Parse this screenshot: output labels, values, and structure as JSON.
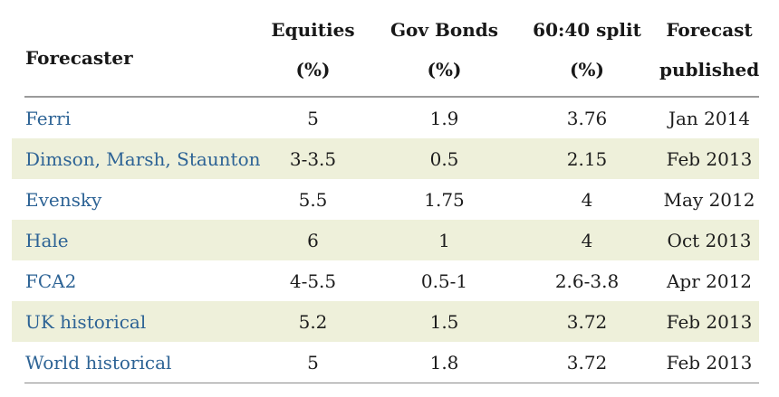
{
  "header": {
    "forecaster": "Forecaster",
    "equities_line1": "Equities",
    "equities_line2": "(%)",
    "gov_bonds_line1": "Gov Bonds",
    "gov_bonds_line2": "(%)",
    "split_line1": "60:40 split",
    "split_line2": "(%)",
    "published_line1": "Forecast",
    "published_line2": "published"
  },
  "rows": [
    {
      "forecaster": "Ferri",
      "equities": "5",
      "gov_bonds": "1.9",
      "split": "3.76",
      "published": "Jan 2014"
    },
    {
      "forecaster": "Dimson, Marsh, Staunton",
      "equities": "3-3.5",
      "gov_bonds": "0.5",
      "split": "2.15",
      "published": "Feb 2013"
    },
    {
      "forecaster": "Evensky",
      "equities": "5.5",
      "gov_bonds": "1.75",
      "split": "4",
      "published": "May 2012"
    },
    {
      "forecaster": "Hale",
      "equities": "6",
      "gov_bonds": "1",
      "split": "4",
      "published": "Oct 2013"
    },
    {
      "forecaster": "FCA2",
      "equities": "4-5.5",
      "gov_bonds": "0.5-1",
      "split": "2.6-3.8",
      "published": "Apr 2012"
    },
    {
      "forecaster": "UK historical",
      "equities": "5.2",
      "gov_bonds": "1.5",
      "split": "3.72",
      "published": "Feb 2013"
    },
    {
      "forecaster": "World historical",
      "equities": "5",
      "gov_bonds": "1.8",
      "split": "3.72",
      "published": "Feb 2013"
    }
  ],
  "colors": {
    "link_blue": "#2d6395",
    "body_text": "#1c1c1c",
    "header_text": "#181818",
    "row_shade": "#eef0da",
    "top_rule": "#9a9a9a",
    "bottom_rule": "#8a8a8a"
  },
  "chart_data": {
    "type": "table",
    "title": "",
    "columns": [
      "Forecaster",
      "Equities (%)",
      "Gov Bonds (%)",
      "60:40 split (%)",
      "Forecast published"
    ],
    "rows": [
      [
        "Ferri",
        "5",
        "1.9",
        "3.76",
        "Jan 2014"
      ],
      [
        "Dimson, Marsh, Staunton",
        "3-3.5",
        "0.5",
        "2.15",
        "Feb 2013"
      ],
      [
        "Evensky",
        "5.5",
        "1.75",
        "4",
        "May 2012"
      ],
      [
        "Hale",
        "6",
        "1",
        "4",
        "Oct 2013"
      ],
      [
        "FCA2",
        "4-5.5",
        "0.5-1",
        "2.6-3.8",
        "Apr 2012"
      ],
      [
        "UK historical",
        "5.2",
        "1.5",
        "3.72",
        "Feb 2013"
      ],
      [
        "World historical",
        "5",
        "1.8",
        "3.72",
        "Feb 2013"
      ]
    ]
  }
}
